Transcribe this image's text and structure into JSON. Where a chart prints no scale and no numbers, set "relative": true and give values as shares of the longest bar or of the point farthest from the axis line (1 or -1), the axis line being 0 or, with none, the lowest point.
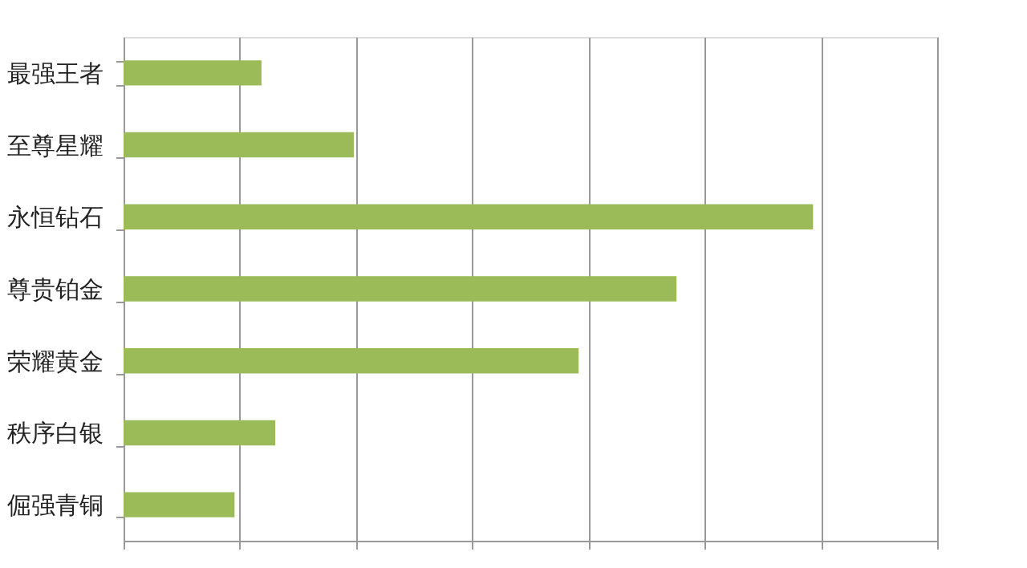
{
  "chart_data": {
    "type": "bar",
    "orientation": "horizontal",
    "relative": true,
    "grid": "x",
    "categories": [
      "最强王者",
      "至尊星耀",
      "永恒钻石",
      "尊贵铂金",
      "荣耀黄金",
      "秩序白银",
      "倔强青铜"
    ],
    "values": [
      0.2,
      0.334,
      1,
      0.802,
      0.66,
      0.22,
      0.161
    ],
    "color": "#9bbb59"
  }
}
